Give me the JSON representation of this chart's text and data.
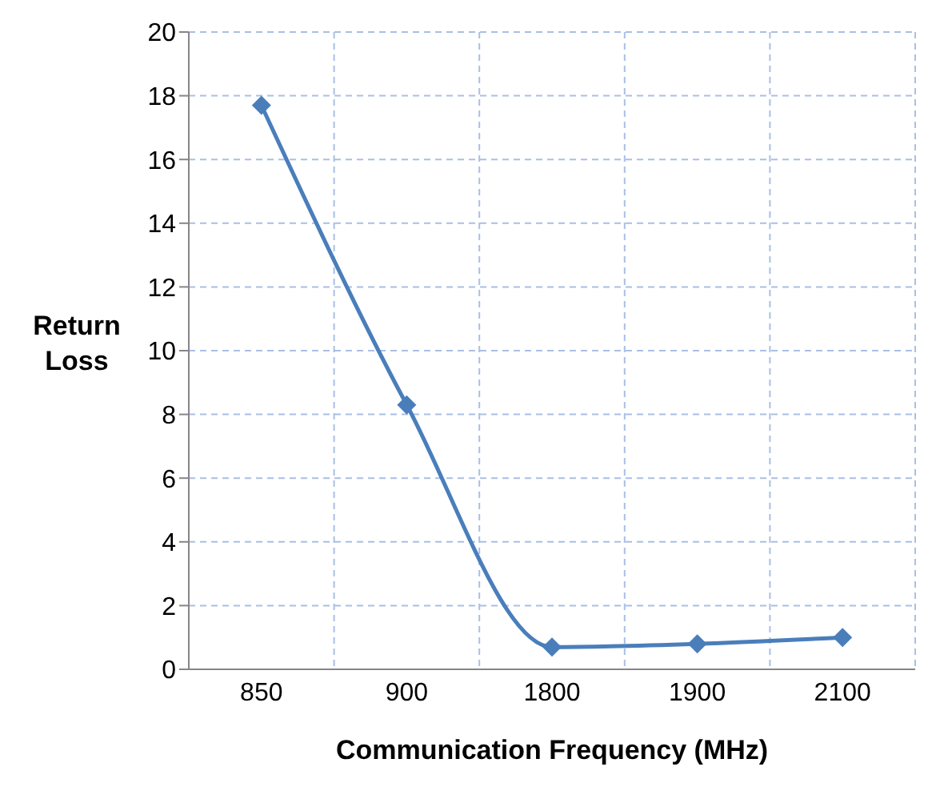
{
  "chart_data": {
    "type": "line",
    "xlabel": "Communication Frequency (MHz)",
    "ylabel": "Return Loss",
    "categories": [
      "850",
      "900",
      "1800",
      "1900",
      "2100"
    ],
    "series": [
      {
        "color": "#4a7ebb",
        "values": [
          17.7,
          8.3,
          0.7,
          0.8,
          1.0
        ]
      }
    ],
    "ylim": [
      0,
      20
    ],
    "yticks": [
      0,
      2,
      4,
      6,
      8,
      10,
      12,
      14,
      16,
      18,
      20
    ],
    "grid": true,
    "marker": "diamond",
    "line_style": "solid"
  }
}
